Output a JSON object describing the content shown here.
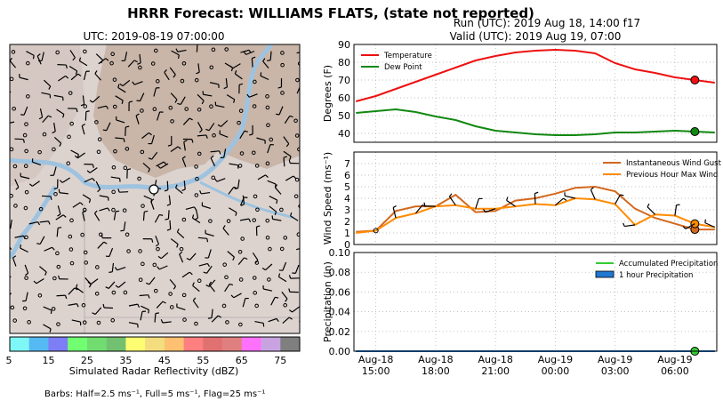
{
  "main_title": "HRRR Forecast: WILLIAMS FLATS, (state not reported)",
  "run_line": "Run (UTC): 2019 Aug 18, 14:00 f17",
  "valid_line": "Valid (UTC): 2019 Aug 19, 07:00",
  "map": {
    "title": "UTC: 2019-08-19 07:00:00",
    "colorbar_label": "Simulated Radar Reflectivity (dBZ)",
    "colorbar_ticks": [
      "5",
      "15",
      "25",
      "35",
      "45",
      "55",
      "65",
      "75"
    ],
    "colorbar_colors": [
      "#7ef7f7",
      "#55b9f3",
      "#7d7df5",
      "#71ff71",
      "#71dd71",
      "#71c171",
      "#fdfd71",
      "#f3dd7e",
      "#fdc171",
      "#fd7f7f",
      "#e17171",
      "#df7f7f",
      "#fd71fd",
      "#c9a3e1",
      "#7f7f7f"
    ],
    "barbs_note": "Barbs: Half=2.5 ms⁻¹, Full=5 ms⁻¹, Flag=25 ms⁻¹"
  },
  "x_ticks": [
    {
      "line1": "Aug-18",
      "line2": "15:00"
    },
    {
      "line1": "Aug-18",
      "line2": "18:00"
    },
    {
      "line1": "Aug-18",
      "line2": "21:00"
    },
    {
      "line1": "Aug-19",
      "line2": "00:00"
    },
    {
      "line1": "Aug-19",
      "line2": "03:00"
    },
    {
      "line1": "Aug-19",
      "line2": "06:00"
    }
  ],
  "chart_data": [
    {
      "type": "line",
      "ylabel": "Degrees (F)",
      "ylim": [
        35,
        90
      ],
      "yticks": [
        40,
        50,
        60,
        70,
        80,
        90
      ],
      "grid": true,
      "legend_position": "top-left",
      "x": [
        "2019-08-18 14:00",
        "15:00",
        "16:00",
        "17:00",
        "18:00",
        "19:00",
        "20:00",
        "21:00",
        "22:00",
        "23:00",
        "2019-08-19 00:00",
        "01:00",
        "02:00",
        "03:00",
        "04:00",
        "05:00",
        "06:00",
        "07:00",
        "08:00"
      ],
      "series": [
        {
          "name": "Temperature",
          "color": "#ee1111",
          "values": [
            58,
            61,
            65,
            69,
            73,
            77,
            81,
            83.5,
            85.5,
            86.5,
            87,
            86.5,
            85,
            79.5,
            76,
            74,
            71.5,
            70,
            68.5
          ]
        },
        {
          "name": "Dew Point",
          "color": "#118811",
          "values": [
            51.5,
            52.5,
            53.5,
            52,
            49.5,
            47.5,
            44,
            41.5,
            40.5,
            39.5,
            39,
            39,
            39.5,
            40.5,
            40.5,
            41,
            41.5,
            41,
            40.5
          ]
        }
      ],
      "highlight_x": "2019-08-19 07:00",
      "highlight_values": {
        "Temperature": 70,
        "Dew Point": 41
      }
    },
    {
      "type": "line",
      "ylabel": "Wind Speed (ms⁻¹)",
      "ylim": [
        0,
        8
      ],
      "yticks": [
        0,
        1,
        2,
        3,
        4,
        5,
        6,
        7
      ],
      "grid": true,
      "legend_position": "top-right",
      "x": [
        "2019-08-18 14:00",
        "15:00",
        "16:00",
        "17:00",
        "18:00",
        "19:00",
        "20:00",
        "21:00",
        "22:00",
        "23:00",
        "2019-08-19 00:00",
        "01:00",
        "02:00",
        "03:00",
        "04:00",
        "05:00",
        "06:00",
        "07:00",
        "08:00"
      ],
      "series": [
        {
          "name": "Instantaneous Wind Gust",
          "color": "#d2691e",
          "values": [
            1.1,
            1.2,
            2.9,
            3.3,
            3.3,
            4.3,
            2.8,
            2.9,
            3.8,
            4.0,
            4.4,
            4.9,
            5.0,
            4.6,
            3.1,
            2.3,
            1.8,
            1.3,
            1.3
          ]
        },
        {
          "name": "Previous Hour Max Wind",
          "color": "#ff8c00",
          "values": [
            1.0,
            1.2,
            2.3,
            2.7,
            3.3,
            3.4,
            3.1,
            3.1,
            3.3,
            3.5,
            3.4,
            4.0,
            3.9,
            3.5,
            1.7,
            2.6,
            2.5,
            1.8,
            1.5
          ]
        }
      ],
      "highlight_x": "2019-08-19 07:00",
      "highlight_values": {
        "Instantaneous Wind Gust": 1.3,
        "Previous Hour Max Wind": 1.8
      }
    },
    {
      "type": "line",
      "ylabel": "Precipitation (in)",
      "ylim": [
        0,
        0.1
      ],
      "yticks": [
        "0.00",
        "0.02",
        "0.04",
        "0.06",
        "0.08",
        "0.10"
      ],
      "grid": true,
      "legend_position": "top-right",
      "x": [
        "2019-08-18 14:00",
        "15:00",
        "16:00",
        "17:00",
        "18:00",
        "19:00",
        "20:00",
        "21:00",
        "22:00",
        "23:00",
        "2019-08-19 00:00",
        "01:00",
        "02:00",
        "03:00",
        "04:00",
        "05:00",
        "06:00",
        "07:00",
        "08:00"
      ],
      "series": [
        {
          "name": "Accumulated Precipitation",
          "color": "#33cc33",
          "values": [
            0,
            0,
            0,
            0,
            0,
            0,
            0,
            0,
            0,
            0,
            0,
            0,
            0,
            0,
            0,
            0,
            0,
            0,
            0
          ]
        },
        {
          "name": "1 hour Precipitation",
          "color": "#1e78d2",
          "values": [
            0,
            0,
            0,
            0,
            0,
            0,
            0,
            0,
            0,
            0,
            0,
            0,
            0,
            0,
            0,
            0,
            0,
            0,
            0
          ]
        }
      ],
      "highlight_x": "2019-08-19 07:00",
      "highlight_values": {
        "Accumulated Precipitation": 0
      }
    }
  ]
}
